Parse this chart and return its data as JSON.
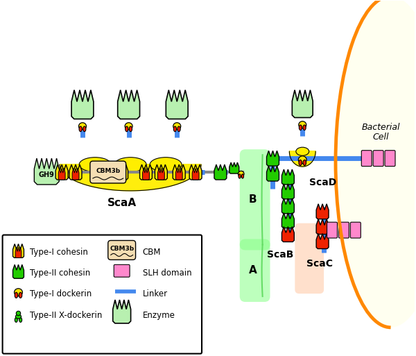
{
  "fig_width": 6.0,
  "fig_height": 5.13,
  "dpi": 100,
  "colors": {
    "yellow": "#FFE500",
    "green_enzyme": "#B8F0B0",
    "green_cohesin2": "#22CC00",
    "red_cohesin1": "#EE2200",
    "blue_linker": "#4488EE",
    "pink_slh": "#FF88CC",
    "tan_cbm": "#F5DEB3",
    "cell_fill": "#FFFFF0",
    "cell_border": "#FF8800",
    "bracket_green": "#99FF99",
    "bracket_orange": "#FFCCAA",
    "yellow_arch": "#FFEE00",
    "yellow_small_arch": "#FFEE00",
    "white": "#FFFFFF",
    "black": "#000000",
    "gray_line": "#888888"
  },
  "labels": {
    "ScaA": "ScaA",
    "ScaB": "ScaB",
    "ScaC": "ScaC",
    "ScaD": "ScaD",
    "GH9": "GH9",
    "CBM3b": "CBM3b",
    "B": "B",
    "A": "A",
    "Bacterial_Cell": "Bacterial Cell",
    "l1": "Type-I cohesin",
    "l2": "Type-II cohesin",
    "l3": "Type-I dockerin",
    "l4": "Type-II X-dockerin",
    "l5": "CBM",
    "l6": "SLH domain",
    "l7": "Linker",
    "l8": "Enzyme"
  }
}
